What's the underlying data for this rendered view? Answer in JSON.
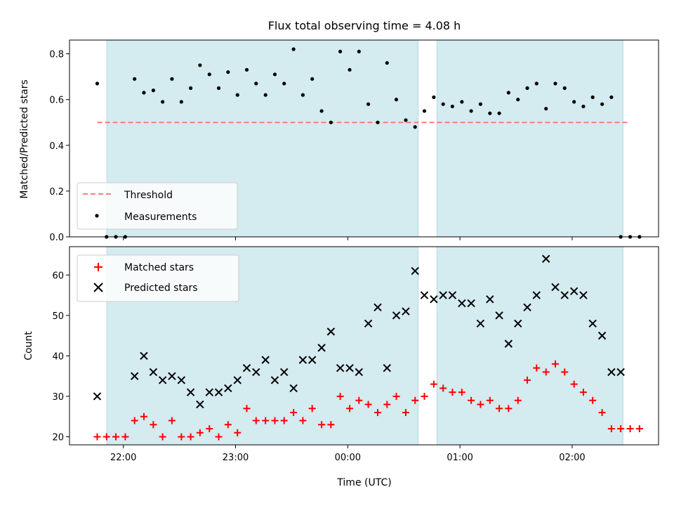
{
  "chart_data": {
    "type": "scatter",
    "title": "Flux total observing time = 4.08 h",
    "xlabel": "Time (UTC)",
    "x_unit": "hours",
    "x_ticks": [
      {
        "value": 22.0,
        "label": "22:00"
      },
      {
        "value": 23.0,
        "label": "23:00"
      },
      {
        "value": 24.0,
        "label": "00:00"
      },
      {
        "value": 25.0,
        "label": "01:00"
      },
      {
        "value": 26.0,
        "label": "02:00"
      }
    ],
    "xlim": [
      21.52,
      26.77
    ],
    "shaded_intervals": [
      [
        21.853,
        24.628
      ],
      [
        24.795,
        26.453
      ]
    ],
    "shade_color": "#d4ebf0",
    "panels": [
      {
        "ylabel": "Matched/Predicted stars",
        "ylim": [
          0.0,
          0.86
        ],
        "y_ticks": [
          0.0,
          0.2,
          0.4,
          0.6,
          0.8
        ],
        "y_tick_labels": [
          "0.0",
          "0.2",
          "0.4",
          "0.6",
          "0.8"
        ],
        "legend": {
          "position": "lower left",
          "entries": [
            "Threshold",
            "Measurements"
          ]
        },
        "series": [
          {
            "name": "Threshold",
            "style": "dashed-line",
            "color": "#ff7a7a",
            "x": [
              21.767,
              26.5
            ],
            "y": [
              0.5,
              0.5
            ]
          },
          {
            "name": "Measurements",
            "style": "dot",
            "color": "#000000",
            "x": [
              21.767,
              21.85,
              21.933,
              22.017,
              22.1,
              22.183,
              22.267,
              22.35,
              22.433,
              22.517,
              22.6,
              22.683,
              22.767,
              22.85,
              22.933,
              23.017,
              23.1,
              23.183,
              23.267,
              23.35,
              23.433,
              23.517,
              23.6,
              23.683,
              23.767,
              23.85,
              23.933,
              24.017,
              24.1,
              24.183,
              24.267,
              24.35,
              24.433,
              24.517,
              24.6,
              24.683,
              24.767,
              24.85,
              24.933,
              25.017,
              25.1,
              25.183,
              25.267,
              25.35,
              25.433,
              25.517,
              25.6,
              25.683,
              25.767,
              25.85,
              25.933,
              26.017,
              26.1,
              26.183,
              26.267,
              26.35,
              26.433,
              26.517,
              26.6
            ],
            "y": [
              0.67,
              0.0,
              0.0,
              0.0,
              0.69,
              0.63,
              0.64,
              0.59,
              0.69,
              0.59,
              0.65,
              0.75,
              0.71,
              0.65,
              0.72,
              0.62,
              0.73,
              0.67,
              0.62,
              0.71,
              0.67,
              0.82,
              0.62,
              0.69,
              0.55,
              0.5,
              0.81,
              0.73,
              0.81,
              0.58,
              0.5,
              0.76,
              0.6,
              0.51,
              0.48,
              0.55,
              0.61,
              0.58,
              0.57,
              0.59,
              0.55,
              0.58,
              0.54,
              0.54,
              0.63,
              0.6,
              0.65,
              0.67,
              0.56,
              0.67,
              0.65,
              0.59,
              0.57,
              0.61,
              0.58,
              0.61,
              0.0,
              0.0,
              0.0
            ]
          }
        ]
      },
      {
        "ylabel": "Count",
        "ylim": [
          18,
          67
        ],
        "y_ticks": [
          20,
          30,
          40,
          50,
          60
        ],
        "y_tick_labels": [
          "20",
          "30",
          "40",
          "50",
          "60"
        ],
        "legend": {
          "position": "upper left",
          "entries": [
            "Matched stars",
            "Predicted stars"
          ]
        },
        "series": [
          {
            "name": "Matched stars",
            "style": "plus",
            "color": "#ff0000",
            "x": [
              21.767,
              21.85,
              21.933,
              22.017,
              22.1,
              22.183,
              22.267,
              22.35,
              22.433,
              22.517,
              22.6,
              22.683,
              22.767,
              22.85,
              22.933,
              23.017,
              23.1,
              23.183,
              23.267,
              23.35,
              23.433,
              23.517,
              23.6,
              23.683,
              23.767,
              23.85,
              23.933,
              24.017,
              24.1,
              24.183,
              24.267,
              24.35,
              24.433,
              24.517,
              24.6,
              24.683,
              24.767,
              24.85,
              24.933,
              25.017,
              25.1,
              25.183,
              25.267,
              25.35,
              25.433,
              25.517,
              25.6,
              25.683,
              25.767,
              25.85,
              25.933,
              26.017,
              26.1,
              26.183,
              26.267,
              26.35,
              26.433,
              26.517,
              26.6
            ],
            "y": [
              20,
              20,
              20,
              20,
              24,
              25,
              23,
              20,
              24,
              20,
              20,
              21,
              22,
              20,
              23,
              21,
              27,
              24,
              24,
              24,
              24,
              26,
              24,
              27,
              23,
              23,
              30,
              27,
              29,
              28,
              26,
              28,
              30,
              26,
              29,
              30,
              33,
              32,
              31,
              31,
              29,
              28,
              29,
              27,
              27,
              29,
              34,
              37,
              36,
              38,
              36,
              33,
              31,
              29,
              26,
              22,
              22,
              22,
              22
            ]
          },
          {
            "name": "Predicted stars",
            "style": "x",
            "color": "#000000",
            "x": [
              21.767,
              22.1,
              22.183,
              22.267,
              22.35,
              22.433,
              22.517,
              22.6,
              22.683,
              22.767,
              22.85,
              22.933,
              23.017,
              23.1,
              23.183,
              23.267,
              23.35,
              23.433,
              23.517,
              23.6,
              23.683,
              23.767,
              23.85,
              23.933,
              24.017,
              24.1,
              24.183,
              24.267,
              24.35,
              24.433,
              24.517,
              24.6,
              24.683,
              24.767,
              24.85,
              24.933,
              25.017,
              25.1,
              25.183,
              25.267,
              25.35,
              25.433,
              25.517,
              25.6,
              25.683,
              25.767,
              25.85,
              25.933,
              26.017,
              26.1,
              26.183,
              26.267,
              26.35,
              26.433
            ],
            "y": [
              30,
              35,
              40,
              36,
              34,
              35,
              34,
              31,
              28,
              31,
              31,
              32,
              34,
              37,
              36,
              39,
              34,
              36,
              32,
              39,
              39,
              42,
              46,
              37,
              37,
              36,
              48,
              52,
              37,
              50,
              51,
              61,
              55,
              54,
              55,
              55,
              53,
              53,
              48,
              54,
              50,
              43,
              48,
              52,
              55,
              64,
              57,
              55,
              56,
              55,
              48,
              45,
              36,
              36
            ]
          }
        ]
      }
    ]
  }
}
